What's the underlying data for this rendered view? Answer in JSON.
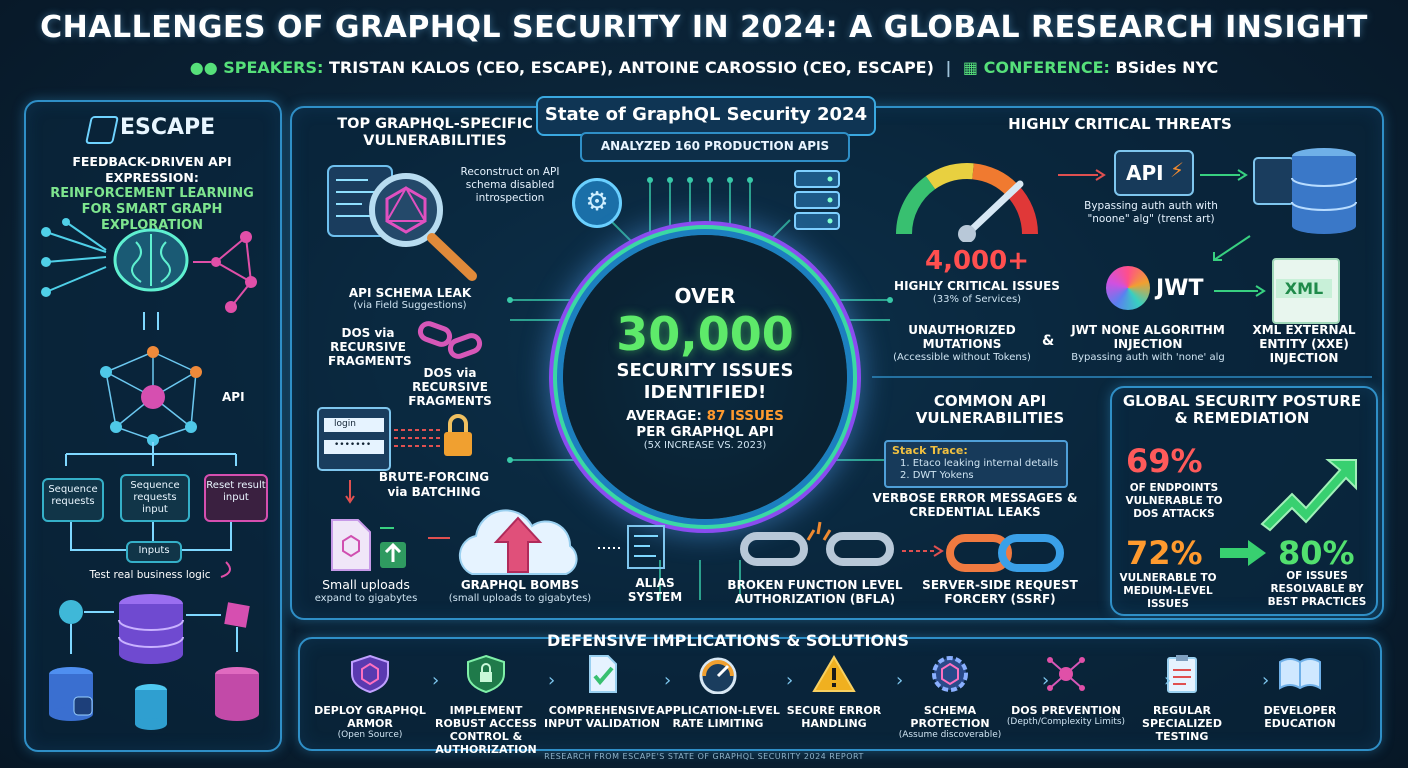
{
  "header": {
    "title": "CHALLENGES OF GRAPHQL SECURITY IN 2024: A GLOBAL RESEARCH INSIGHT",
    "speakers_label": "SPEAKERS:",
    "speakers_value": "TRISTAN KALOS (CEO, ESCAPE), ANTOINE CAROSSIO (CEO, ESCAPE)",
    "separator": "|",
    "conference_label": "CONFERENCE:",
    "conference_value": "BSides NYC"
  },
  "left_panel": {
    "brand": "ESCAPE",
    "heading_line1": "FEEDBACK-DRIVEN API EXPRESSION:",
    "heading_line2": "REINFORCEMENT LEARNING",
    "heading_line3": "FOR SMART GRAPH EXPLORATION",
    "api_label": "API",
    "box1": "Sequence requests",
    "box2": "Sequence requests input",
    "box3": "Reset result input",
    "inputs_label": "Inputs",
    "test_label": "Test real business logic"
  },
  "center": {
    "banner": "State of GraphQL Security 2024",
    "sub_banner": "ANALYZED 160 PRODUCTION APIS",
    "over": "OVER",
    "big_number": "30,000",
    "issues_line1": "SECURITY ISSUES",
    "issues_line2": "IDENTIFIED!",
    "avg_prefix": "AVERAGE:",
    "avg_value": "87 ISSUES",
    "avg_suffix": "PER GRAPHQL API",
    "increase": "(5X INCREASE VS. 2023)"
  },
  "top_vulns": {
    "heading": "TOP GRAPHQL-SPECIFIC VULNERABILITIES",
    "reconstruct_note": "Reconstruct on API schema disabled introspection",
    "schema_leak": "API SCHEMA LEAK",
    "schema_leak_sub": "(via Field Suggestions)",
    "dos_left": "DOS via RECURSIVE FRAGMENTS",
    "dos_right": "DOS via RECURSIVE FRAGMENTS",
    "login_field": "login",
    "password_field": "•••••••",
    "brute": "BRUTE-FORCING",
    "brute_sub": "via BATCHING",
    "small_uploads": "Small uploads",
    "small_uploads_sub": "expand to gigabytes",
    "bombs": "GRAPHQL BOMBS",
    "bombs_sub": "(small uploads to gigabytes)",
    "alias": "ALIAS SYSTEM"
  },
  "critical": {
    "heading": "HIGHLY CRITICAL THREATS",
    "count": "4,000+",
    "count_label": "HIGHLY CRITICAL ISSUES",
    "count_sub": "(33% of Services)",
    "api_chip": "API",
    "bypass_note": "Bypassing auth auth with \"noone\" alg\" (trenst art)",
    "jwt": "JWT",
    "xml": "XML",
    "unauth": "UNAUTHORIZED MUTATIONS",
    "unauth_sub": "(Accessible without Tokens)",
    "amp": "&",
    "jwt_none": "JWT NONE ALGORITHM INJECTION",
    "jwt_none_sub": "Bypassing auth with 'none' alg",
    "xxe": "XML EXTERNAL ENTITY (XXE) INJECTION"
  },
  "common": {
    "heading": "COMMON API VULNERABILITIES",
    "stack_title": "Stack Trace:",
    "stack_line1": "1. Etaco leaking internal details",
    "stack_line2": "2. DWT Yokens",
    "verbose": "VERBOSE ERROR MESSAGES & CREDENTIAL LEAKS",
    "bfla": "BROKEN FUNCTION LEVEL AUTHORIZATION (BFLA)",
    "ssrf": "SERVER-SIDE REQUEST FORCERY (SSRF)"
  },
  "posture": {
    "heading": "GLOBAL SECURITY POSTURE & REMEDIATION",
    "stat1": "69%",
    "stat1_label": "OF ENDPOINTS VULNERABLE TO DOS ATTACKS",
    "stat2": "72%",
    "stat2_label": "VULNERABLE TO MEDIUM-LEVEL ISSUES",
    "stat3": "80%",
    "stat3_label": "OF ISSUES RESOLVABLE BY BEST PRACTICES"
  },
  "defensive": {
    "heading": "DEFENSIVE IMPLICATIONS & SOLUTIONS",
    "items": [
      {
        "title": "DEPLOY GRAPHQL ARMOR",
        "sub": "(Open Source)"
      },
      {
        "title": "IMPLEMENT ROBUST ACCESS CONTROL & AUTHORIZATION",
        "sub": ""
      },
      {
        "title": "COMPREHENSIVE INPUT VALIDATION",
        "sub": ""
      },
      {
        "title": "APPLICATION-LEVEL RATE LIMITING",
        "sub": ""
      },
      {
        "title": "SECURE ERROR HANDLING",
        "sub": ""
      },
      {
        "title": "SCHEMA PROTECTION",
        "sub": "(Assume discoverable)"
      },
      {
        "title": "DOS PREVENTION",
        "sub": "(Depth/Complexity Limits)"
      },
      {
        "title": "REGULAR SPECIALIZED TESTING",
        "sub": ""
      },
      {
        "title": "DEVELOPER EDUCATION",
        "sub": ""
      }
    ]
  },
  "footer": "RESEARCH FROM ESCAPE'S STATE OF GRAPHQL SECURITY 2024 REPORT"
}
